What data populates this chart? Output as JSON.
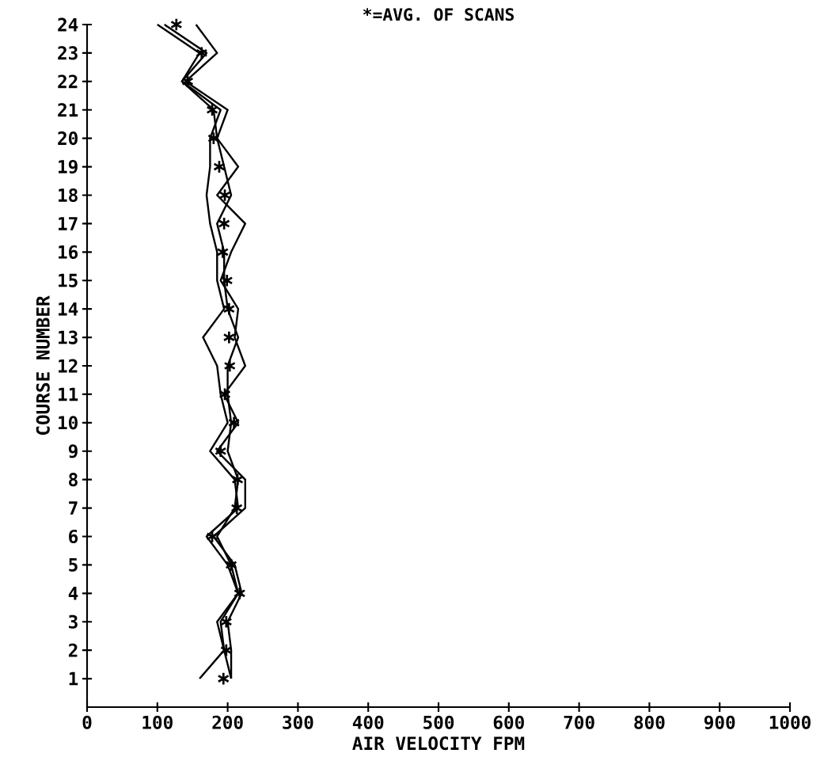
{
  "chart_data": {
    "type": "line",
    "title": "*=AVG. OF SCANS",
    "xlabel": "AIR VELOCITY FPM",
    "ylabel": "COURSE NUMBER",
    "xlim": [
      0,
      1000
    ],
    "ylim": [
      0,
      24
    ],
    "xticks": [
      0,
      100,
      200,
      300,
      400,
      500,
      600,
      700,
      800,
      900,
      1000
    ],
    "yticks": [
      1,
      2,
      3,
      4,
      5,
      6,
      7,
      8,
      9,
      10,
      11,
      12,
      13,
      14,
      15,
      16,
      17,
      18,
      19,
      20,
      21,
      22,
      23,
      24
    ],
    "grid": false,
    "marker": "none",
    "line_style": "solid",
    "series": [
      {
        "color": "#000000",
        "x": [
          160,
          195,
          185,
          215,
          200,
          170,
          215,
          210,
          175,
          200,
          190,
          185,
          165,
          195,
          185,
          185,
          175,
          170,
          175,
          175,
          190,
          135,
          160,
          100
        ],
        "values": [
          1,
          2,
          3,
          4,
          5,
          6,
          7,
          8,
          9,
          10,
          11,
          12,
          13,
          14,
          15,
          16,
          17,
          18,
          19,
          20,
          21,
          22,
          23,
          24
        ]
      },
      {
        "color": "#000000",
        "x": [
          205,
          205,
          200,
          220,
          210,
          180,
          225,
          225,
          185,
          215,
          195,
          225,
          210,
          215,
          190,
          205,
          225,
          185,
          215,
          185,
          200,
          140,
          185,
          155
        ],
        "values": [
          1,
          2,
          3,
          4,
          5,
          6,
          7,
          8,
          9,
          10,
          11,
          12,
          13,
          14,
          15,
          16,
          17,
          18,
          19,
          20,
          21,
          22,
          23,
          24
        ]
      },
      {
        "color": "#000000",
        "x": [
          205,
          195,
          190,
          215,
          205,
          185,
          210,
          215,
          200,
          205,
          200,
          200,
          215,
          200,
          195,
          195,
          185,
          205,
          195,
          185,
          180,
          135,
          170,
          110
        ],
        "values": [
          1,
          2,
          3,
          4,
          5,
          6,
          7,
          8,
          9,
          10,
          11,
          12,
          13,
          14,
          15,
          16,
          17,
          18,
          19,
          20,
          21,
          22,
          23,
          24
        ]
      },
      {
        "type": "scatter",
        "marker": "cross",
        "color": "#000000",
        "x": [
          194,
          198,
          198,
          217,
          205,
          178,
          213,
          214,
          190,
          209,
          196,
          203,
          202,
          202,
          199,
          193,
          195,
          196,
          188,
          180,
          178,
          143,
          163,
          127
        ],
        "values": [
          1,
          2,
          3,
          4,
          5,
          6,
          7,
          8,
          9,
          10,
          11,
          12,
          13,
          14,
          15,
          16,
          17,
          18,
          19,
          20,
          21,
          22,
          23,
          24
        ]
      }
    ]
  }
}
